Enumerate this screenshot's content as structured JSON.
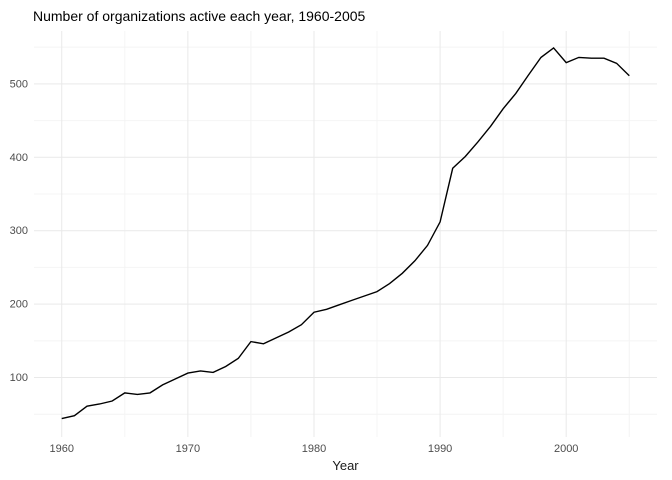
{
  "chart_data": {
    "type": "line",
    "title": "Number of organizations active each year, 1960-2005",
    "xlabel": "Year",
    "ylabel": "",
    "x": [
      1960,
      1961,
      1962,
      1963,
      1964,
      1965,
      1966,
      1967,
      1968,
      1969,
      1970,
      1971,
      1972,
      1973,
      1974,
      1975,
      1976,
      1977,
      1978,
      1979,
      1980,
      1981,
      1982,
      1983,
      1984,
      1985,
      1986,
      1987,
      1988,
      1989,
      1990,
      1991,
      1992,
      1993,
      1994,
      1995,
      1996,
      1997,
      1998,
      1999,
      2000,
      2001,
      2002,
      2003,
      2004,
      2005
    ],
    "series": [
      {
        "name": "organizations-active",
        "values": [
          44,
          48,
          61,
          64,
          68,
          79,
          77,
          79,
          90,
          98,
          106,
          109,
          107,
          115,
          126,
          149,
          146,
          154,
          162,
          172,
          189,
          193,
          199,
          205,
          211,
          217,
          228,
          242,
          259,
          280,
          312,
          385,
          401,
          421,
          442,
          466,
          487,
          512,
          536,
          549,
          529,
          536,
          535,
          535,
          528,
          511
        ]
      }
    ],
    "x_ticks_major": [
      1960,
      1970,
      1980,
      1990,
      2000
    ],
    "x_ticks_minor": [
      1965,
      1975,
      1985,
      1995,
      2005
    ],
    "y_ticks_major": [
      100,
      200,
      300,
      400,
      500
    ],
    "y_ticks_minor": [
      50,
      150,
      250,
      350,
      450,
      550
    ],
    "xlim": [
      1957.8,
      2007.2
    ],
    "ylim": [
      19,
      572
    ],
    "grid": true,
    "legend": "none",
    "colors": {
      "line": "#000000",
      "background": "#ffffff",
      "grid_major": "#e9e9e9",
      "grid_minor": "#f4f4f4",
      "axis_text": "#4d4d4d",
      "axis_title": "#1a1a1a",
      "title": "#000000"
    }
  }
}
